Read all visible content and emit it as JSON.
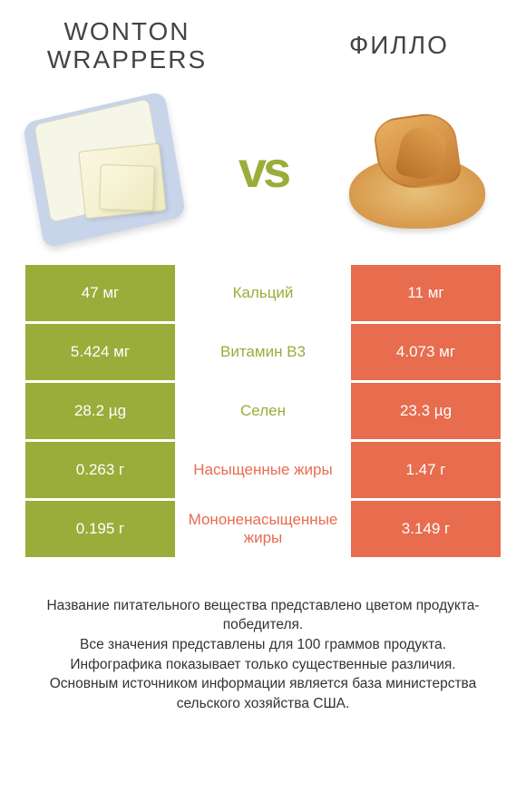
{
  "colors": {
    "green": "#9aad3a",
    "orange": "#e86c4e",
    "text": "#333333",
    "white": "#ffffff"
  },
  "header": {
    "left_title": "WONTON WRAPPERS",
    "right_title": "ФИЛЛО",
    "vs_label": "vs"
  },
  "rows": [
    {
      "left": "47 мг",
      "label": "Кальций",
      "right": "11 мг",
      "winner": "left"
    },
    {
      "left": "5.424 мг",
      "label": "Витамин B3",
      "right": "4.073 мг",
      "winner": "left"
    },
    {
      "left": "28.2 µg",
      "label": "Селен",
      "right": "23.3 µg",
      "winner": "left"
    },
    {
      "left": "0.263 г",
      "label": "Насыщенные жиры",
      "right": "1.47 г",
      "winner": "right"
    },
    {
      "left": "0.195 г",
      "label": "Мононенасыщенные жиры",
      "right": "3.149 г",
      "winner": "right"
    }
  ],
  "footer": {
    "line1": "Название питательного вещества представлено цветом продукта-победителя.",
    "line2": "Все значения представлены для 100 граммов продукта.",
    "line3": "Инфографика показывает только существенные различия.",
    "line4": "Основным источником информации является база министерства сельского хозяйства США."
  }
}
